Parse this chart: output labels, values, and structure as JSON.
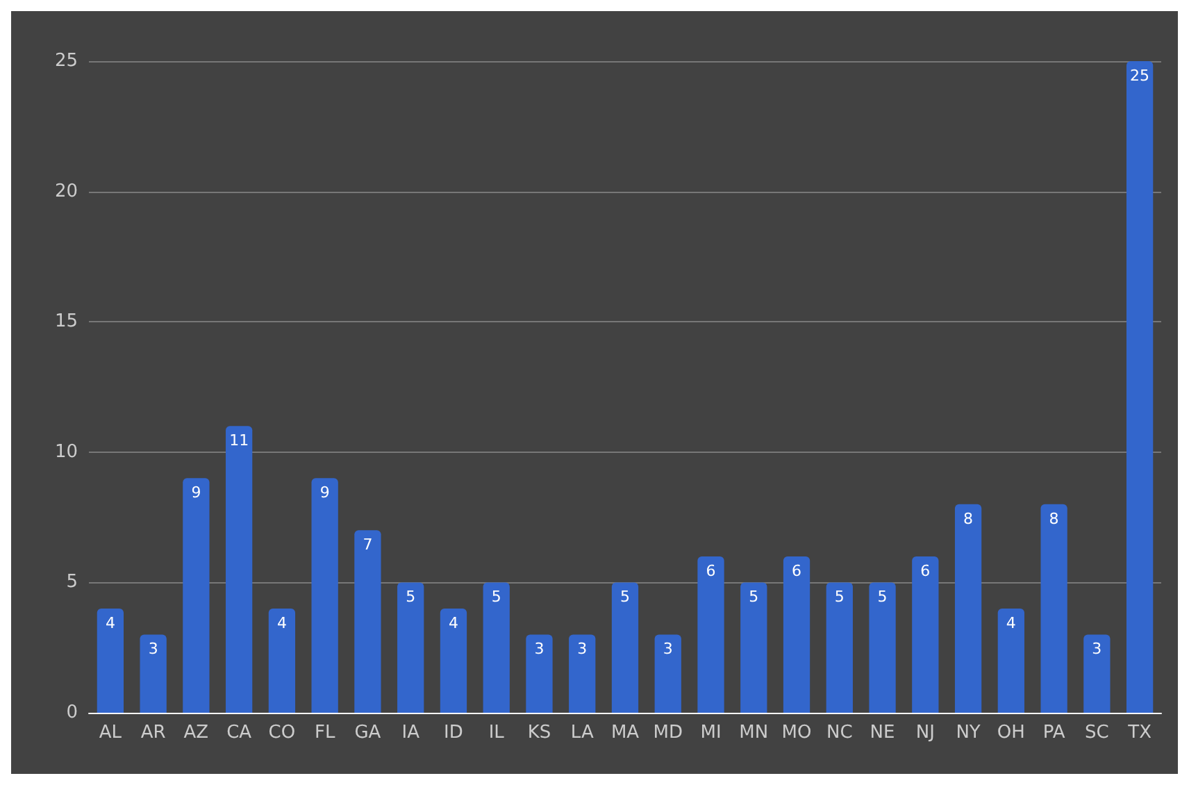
{
  "chart_data": {
    "type": "bar",
    "categories": [
      "AL",
      "AR",
      "AZ",
      "CA",
      "CO",
      "FL",
      "GA",
      "IA",
      "ID",
      "IL",
      "KS",
      "LA",
      "MA",
      "MD",
      "MI",
      "MN",
      "MO",
      "NC",
      "NE",
      "NJ",
      "NY",
      "OH",
      "PA",
      "SC",
      "TX"
    ],
    "values": [
      4,
      3,
      9,
      11,
      4,
      9,
      7,
      5,
      4,
      5,
      3,
      3,
      5,
      3,
      6,
      5,
      6,
      5,
      5,
      6,
      8,
      4,
      8,
      3,
      25
    ],
    "color": "#3366cc",
    "ylim": [
      0,
      25
    ],
    "yticks": [
      0,
      5,
      10,
      15,
      20,
      25
    ],
    "grid": "y",
    "data_labels": true
  }
}
